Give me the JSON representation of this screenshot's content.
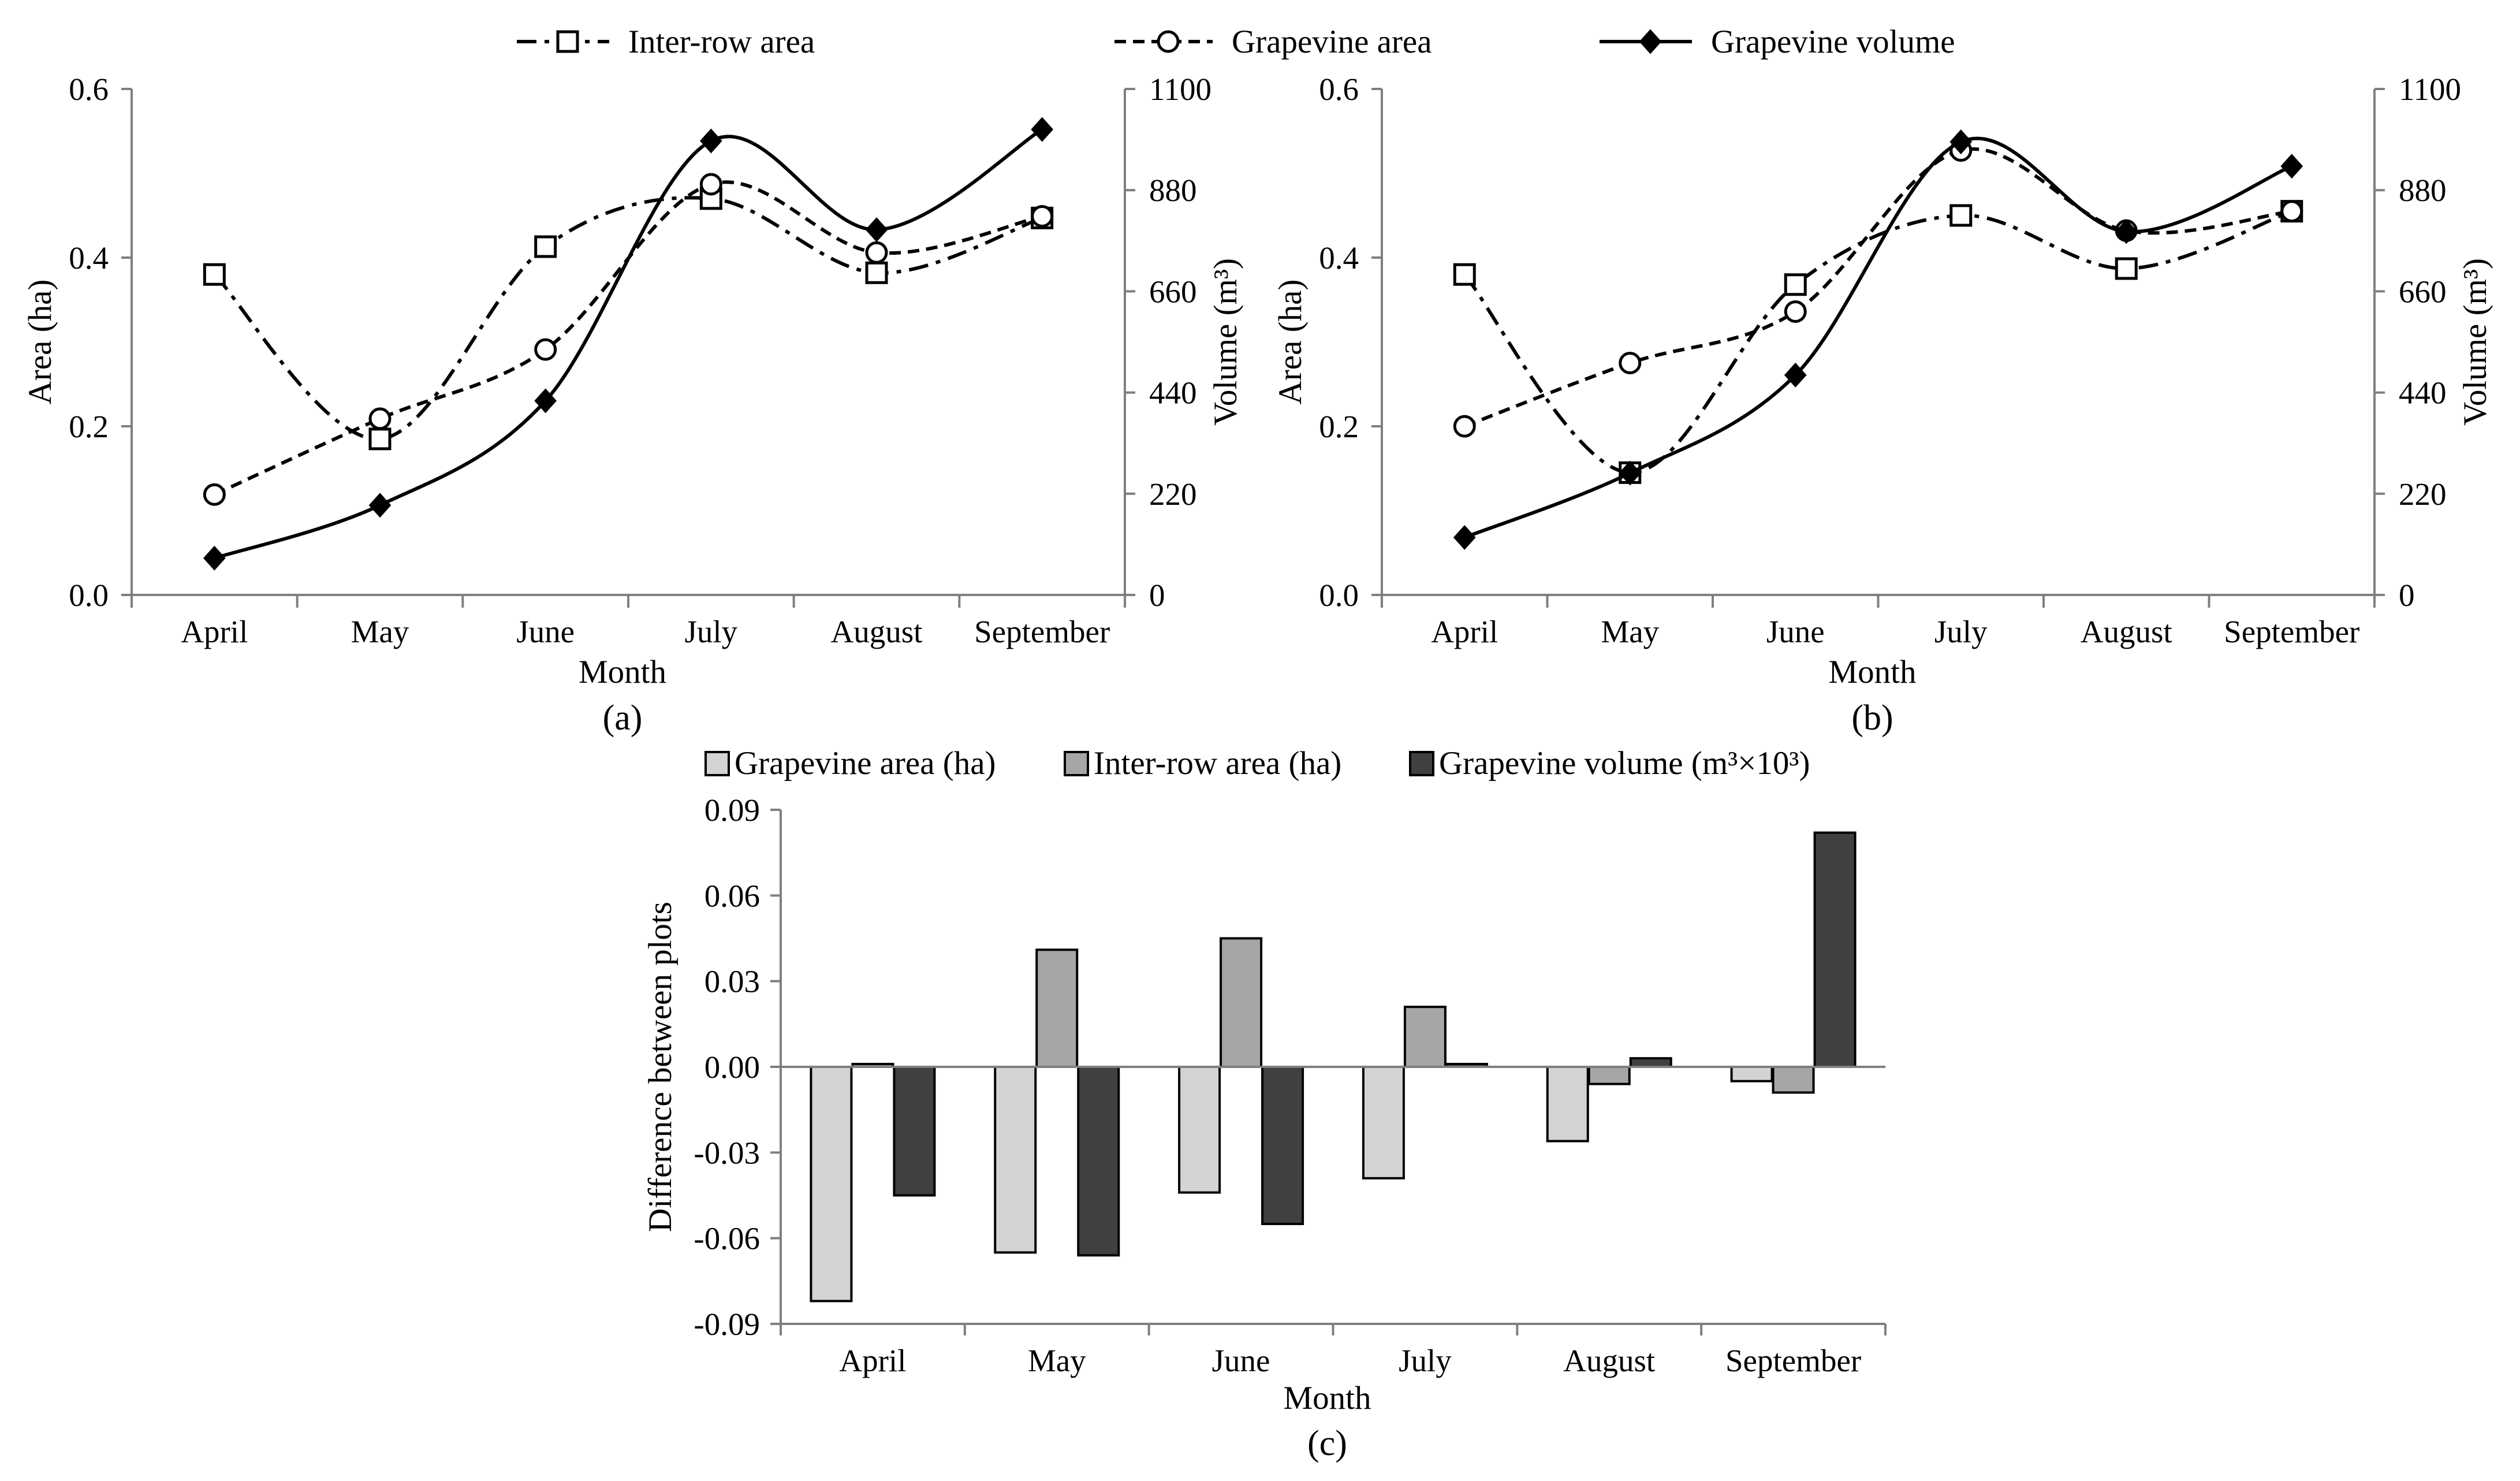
{
  "legend_top": {
    "inter_row": "Inter-row area",
    "grapevine_area": "Grapevine area",
    "grapevine_volume": "Grapevine volume"
  },
  "legend_bottom": {
    "grapevine_area": "Grapevine area (ha)",
    "inter_row": "Inter-row area (ha)",
    "grapevine_volume": "Grapevine volume  (m³×10³)"
  },
  "chart_data": [
    {
      "type": "line",
      "caption": "(a)",
      "xlabel": "Month",
      "ylabel": "Area (ha)",
      "y2label": "Volume (m³)",
      "categories": [
        "April",
        "May",
        "June",
        "July",
        "August",
        "September"
      ],
      "ylim": [
        0,
        0.6
      ],
      "yticks": [
        "0.0",
        "0.2",
        "0.4",
        "0.6"
      ],
      "y2lim": [
        0,
        1100
      ],
      "y2ticks": [
        "0",
        "220",
        "440",
        "660",
        "880",
        "1100"
      ],
      "series": [
        {
          "name": "Inter-row area",
          "axis": "left",
          "marker": "square",
          "dash": "dashdot",
          "values": [
            0.38,
            0.185,
            0.413,
            0.47,
            0.382,
            0.447
          ]
        },
        {
          "name": "Grapevine area",
          "axis": "left",
          "marker": "circle",
          "dash": "dashed",
          "values": [
            0.119,
            0.209,
            0.291,
            0.487,
            0.406,
            0.449
          ]
        },
        {
          "name": "Grapevine volume",
          "axis": "right",
          "marker": "diamond",
          "dash": "solid",
          "values": [
            80,
            195,
            422,
            987,
            794,
            1012
          ]
        }
      ]
    },
    {
      "type": "line",
      "caption": "(b)",
      "xlabel": "Month",
      "ylabel": "Area (ha)",
      "y2label": "Volume (m³)",
      "categories": [
        "April",
        "May",
        "June",
        "July",
        "August",
        "September"
      ],
      "ylim": [
        0,
        0.6
      ],
      "yticks": [
        "0.0",
        "0.2",
        "0.4",
        "0.6"
      ],
      "y2lim": [
        0,
        1100
      ],
      "y2ticks": [
        "0",
        "220",
        "440",
        "660",
        "880",
        "1100"
      ],
      "series": [
        {
          "name": "Inter-row area",
          "axis": "left",
          "marker": "square",
          "dash": "dashdot",
          "values": [
            0.38,
            0.145,
            0.368,
            0.45,
            0.387,
            0.455
          ]
        },
        {
          "name": "Grapevine area",
          "axis": "left",
          "marker": "circle",
          "dash": "dashed",
          "values": [
            0.2,
            0.275,
            0.336,
            0.527,
            0.432,
            0.455
          ]
        },
        {
          "name": "Grapevine volume",
          "axis": "right",
          "marker": "diamond",
          "dash": "solid",
          "values": [
            125,
            265,
            478,
            985,
            790,
            932
          ]
        }
      ]
    },
    {
      "type": "bar",
      "caption": "(c)",
      "xlabel": "Month",
      "ylabel": "Difference between plots",
      "categories": [
        "April",
        "May",
        "June",
        "July",
        "August",
        "September"
      ],
      "ylim": [
        -0.09,
        0.09
      ],
      "yticks": [
        "-0.09",
        "-0.06",
        "-0.03",
        "0.00",
        "0.03",
        "0.06",
        "0.09"
      ],
      "series": [
        {
          "name": "Grapevine area (ha)",
          "color": "#d3d3d3",
          "values": [
            -0.082,
            -0.065,
            -0.044,
            -0.039,
            -0.026,
            -0.005
          ]
        },
        {
          "name": "Inter-row area (ha)",
          "color": "#a6a6a6",
          "values": [
            0.001,
            0.041,
            0.045,
            0.021,
            -0.006,
            -0.009
          ]
        },
        {
          "name": "Grapevine volume  (m³×10³)",
          "color": "#404040",
          "values": [
            -0.045,
            -0.066,
            -0.055,
            0.001,
            0.003,
            0.082
          ]
        }
      ]
    }
  ]
}
